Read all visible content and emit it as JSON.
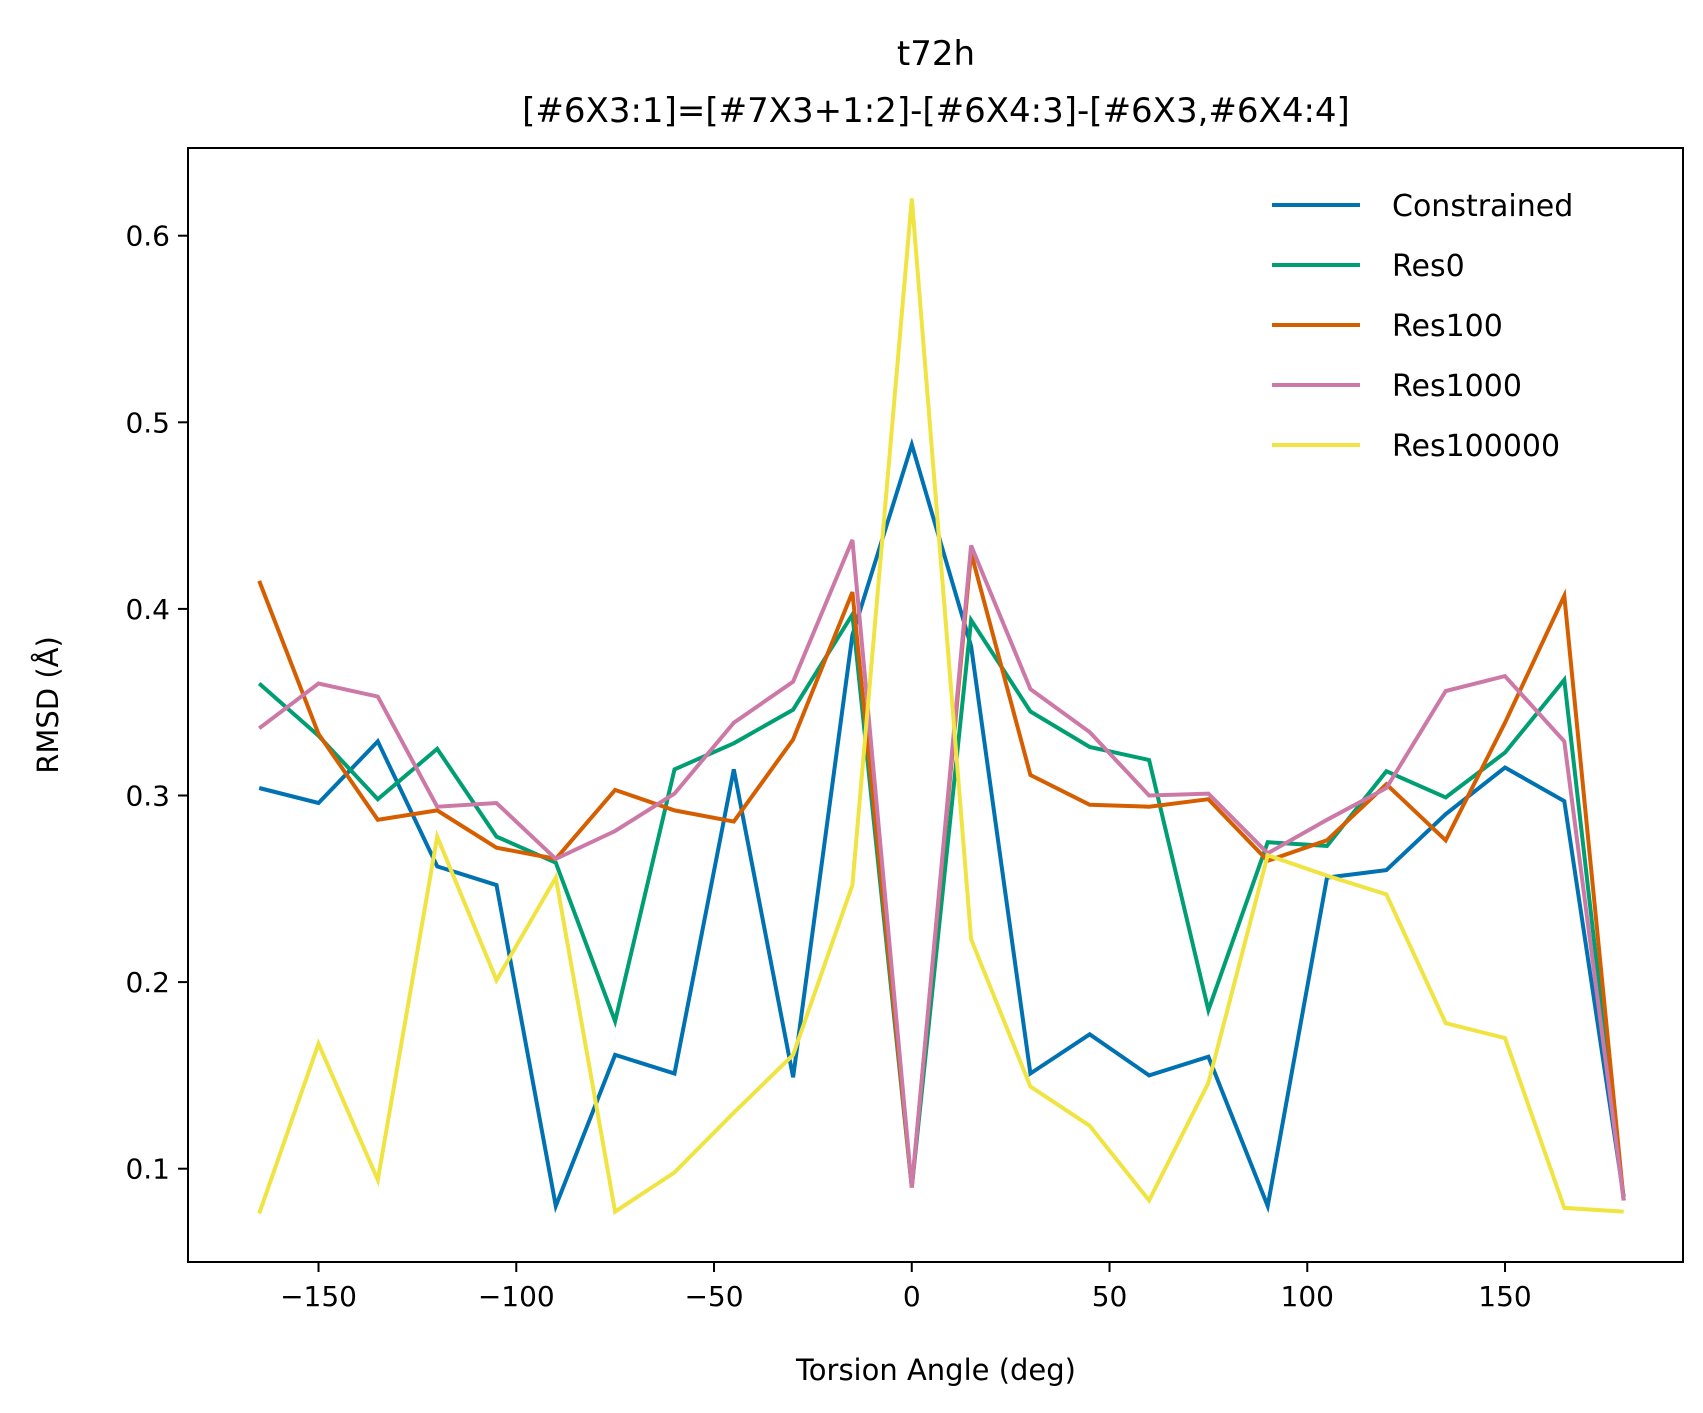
{
  "chart_data": {
    "type": "line",
    "title": "t72h",
    "subtitle": "[#6X3:1]=[#7X3+1:2]-[#6X4:3]-[#6X3,#6X4:4]",
    "xlabel": "Torsion Angle (deg)",
    "ylabel": "RMSD (Å)",
    "xlim": [
      -183,
      195
    ],
    "ylim": [
      0.05,
      0.647
    ],
    "xticks": [
      -150,
      -100,
      -50,
      0,
      50,
      100,
      150
    ],
    "xtick_labels": [
      "−150",
      "−100",
      "−50",
      "0",
      "50",
      "100",
      "150"
    ],
    "yticks": [
      0.1,
      0.2,
      0.3,
      0.4,
      0.5,
      0.6
    ],
    "ytick_labels": [
      "0.1",
      "0.2",
      "0.3",
      "0.4",
      "0.5",
      "0.6"
    ],
    "grid": false,
    "legend_position": "top-right",
    "x": [
      -165,
      -150,
      -135,
      -120,
      -105,
      -90,
      -75,
      -60,
      -45,
      -30,
      -15,
      0,
      15,
      30,
      45,
      60,
      75,
      90,
      105,
      120,
      135,
      150,
      165,
      180
    ],
    "series": [
      {
        "name": "Constrained",
        "color": "#0072b2",
        "values": [
          0.304,
          0.296,
          0.329,
          0.262,
          0.252,
          0.08,
          0.161,
          0.151,
          0.314,
          0.149,
          0.386,
          0.488,
          0.38,
          0.151,
          0.172,
          0.15,
          0.16,
          0.08,
          0.256,
          0.26,
          0.29,
          0.315,
          0.297,
          0.085
        ]
      },
      {
        "name": "Res0",
        "color": "#009e73",
        "values": [
          0.36,
          0.332,
          0.298,
          0.325,
          0.278,
          0.264,
          0.179,
          0.314,
          0.328,
          0.346,
          0.397,
          0.09,
          0.394,
          0.345,
          0.326,
          0.319,
          0.185,
          0.275,
          0.273,
          0.313,
          0.299,
          0.323,
          0.362,
          0.083
        ]
      },
      {
        "name": "Res100",
        "color": "#d55e00",
        "values": [
          0.415,
          0.333,
          0.287,
          0.292,
          0.272,
          0.266,
          0.303,
          0.292,
          0.286,
          0.33,
          0.409,
          0.09,
          0.43,
          0.311,
          0.295,
          0.294,
          0.298,
          0.265,
          0.276,
          0.306,
          0.276,
          0.339,
          0.407,
          0.083
        ]
      },
      {
        "name": "Res1000",
        "color": "#cc79a7",
        "values": [
          0.336,
          0.36,
          0.353,
          0.294,
          0.296,
          0.266,
          0.281,
          0.301,
          0.339,
          0.361,
          0.437,
          0.09,
          0.434,
          0.357,
          0.334,
          0.3,
          0.301,
          0.269,
          0.287,
          0.304,
          0.356,
          0.364,
          0.329,
          0.083
        ]
      },
      {
        "name": "Res100000",
        "color": "#f0e442",
        "values": [
          0.076,
          0.167,
          0.094,
          0.278,
          0.201,
          0.256,
          0.077,
          0.098,
          0.13,
          0.161,
          0.252,
          0.62,
          0.223,
          0.144,
          0.123,
          0.083,
          0.146,
          0.268,
          0.257,
          0.247,
          0.178,
          0.17,
          0.079,
          0.077
        ]
      }
    ]
  }
}
